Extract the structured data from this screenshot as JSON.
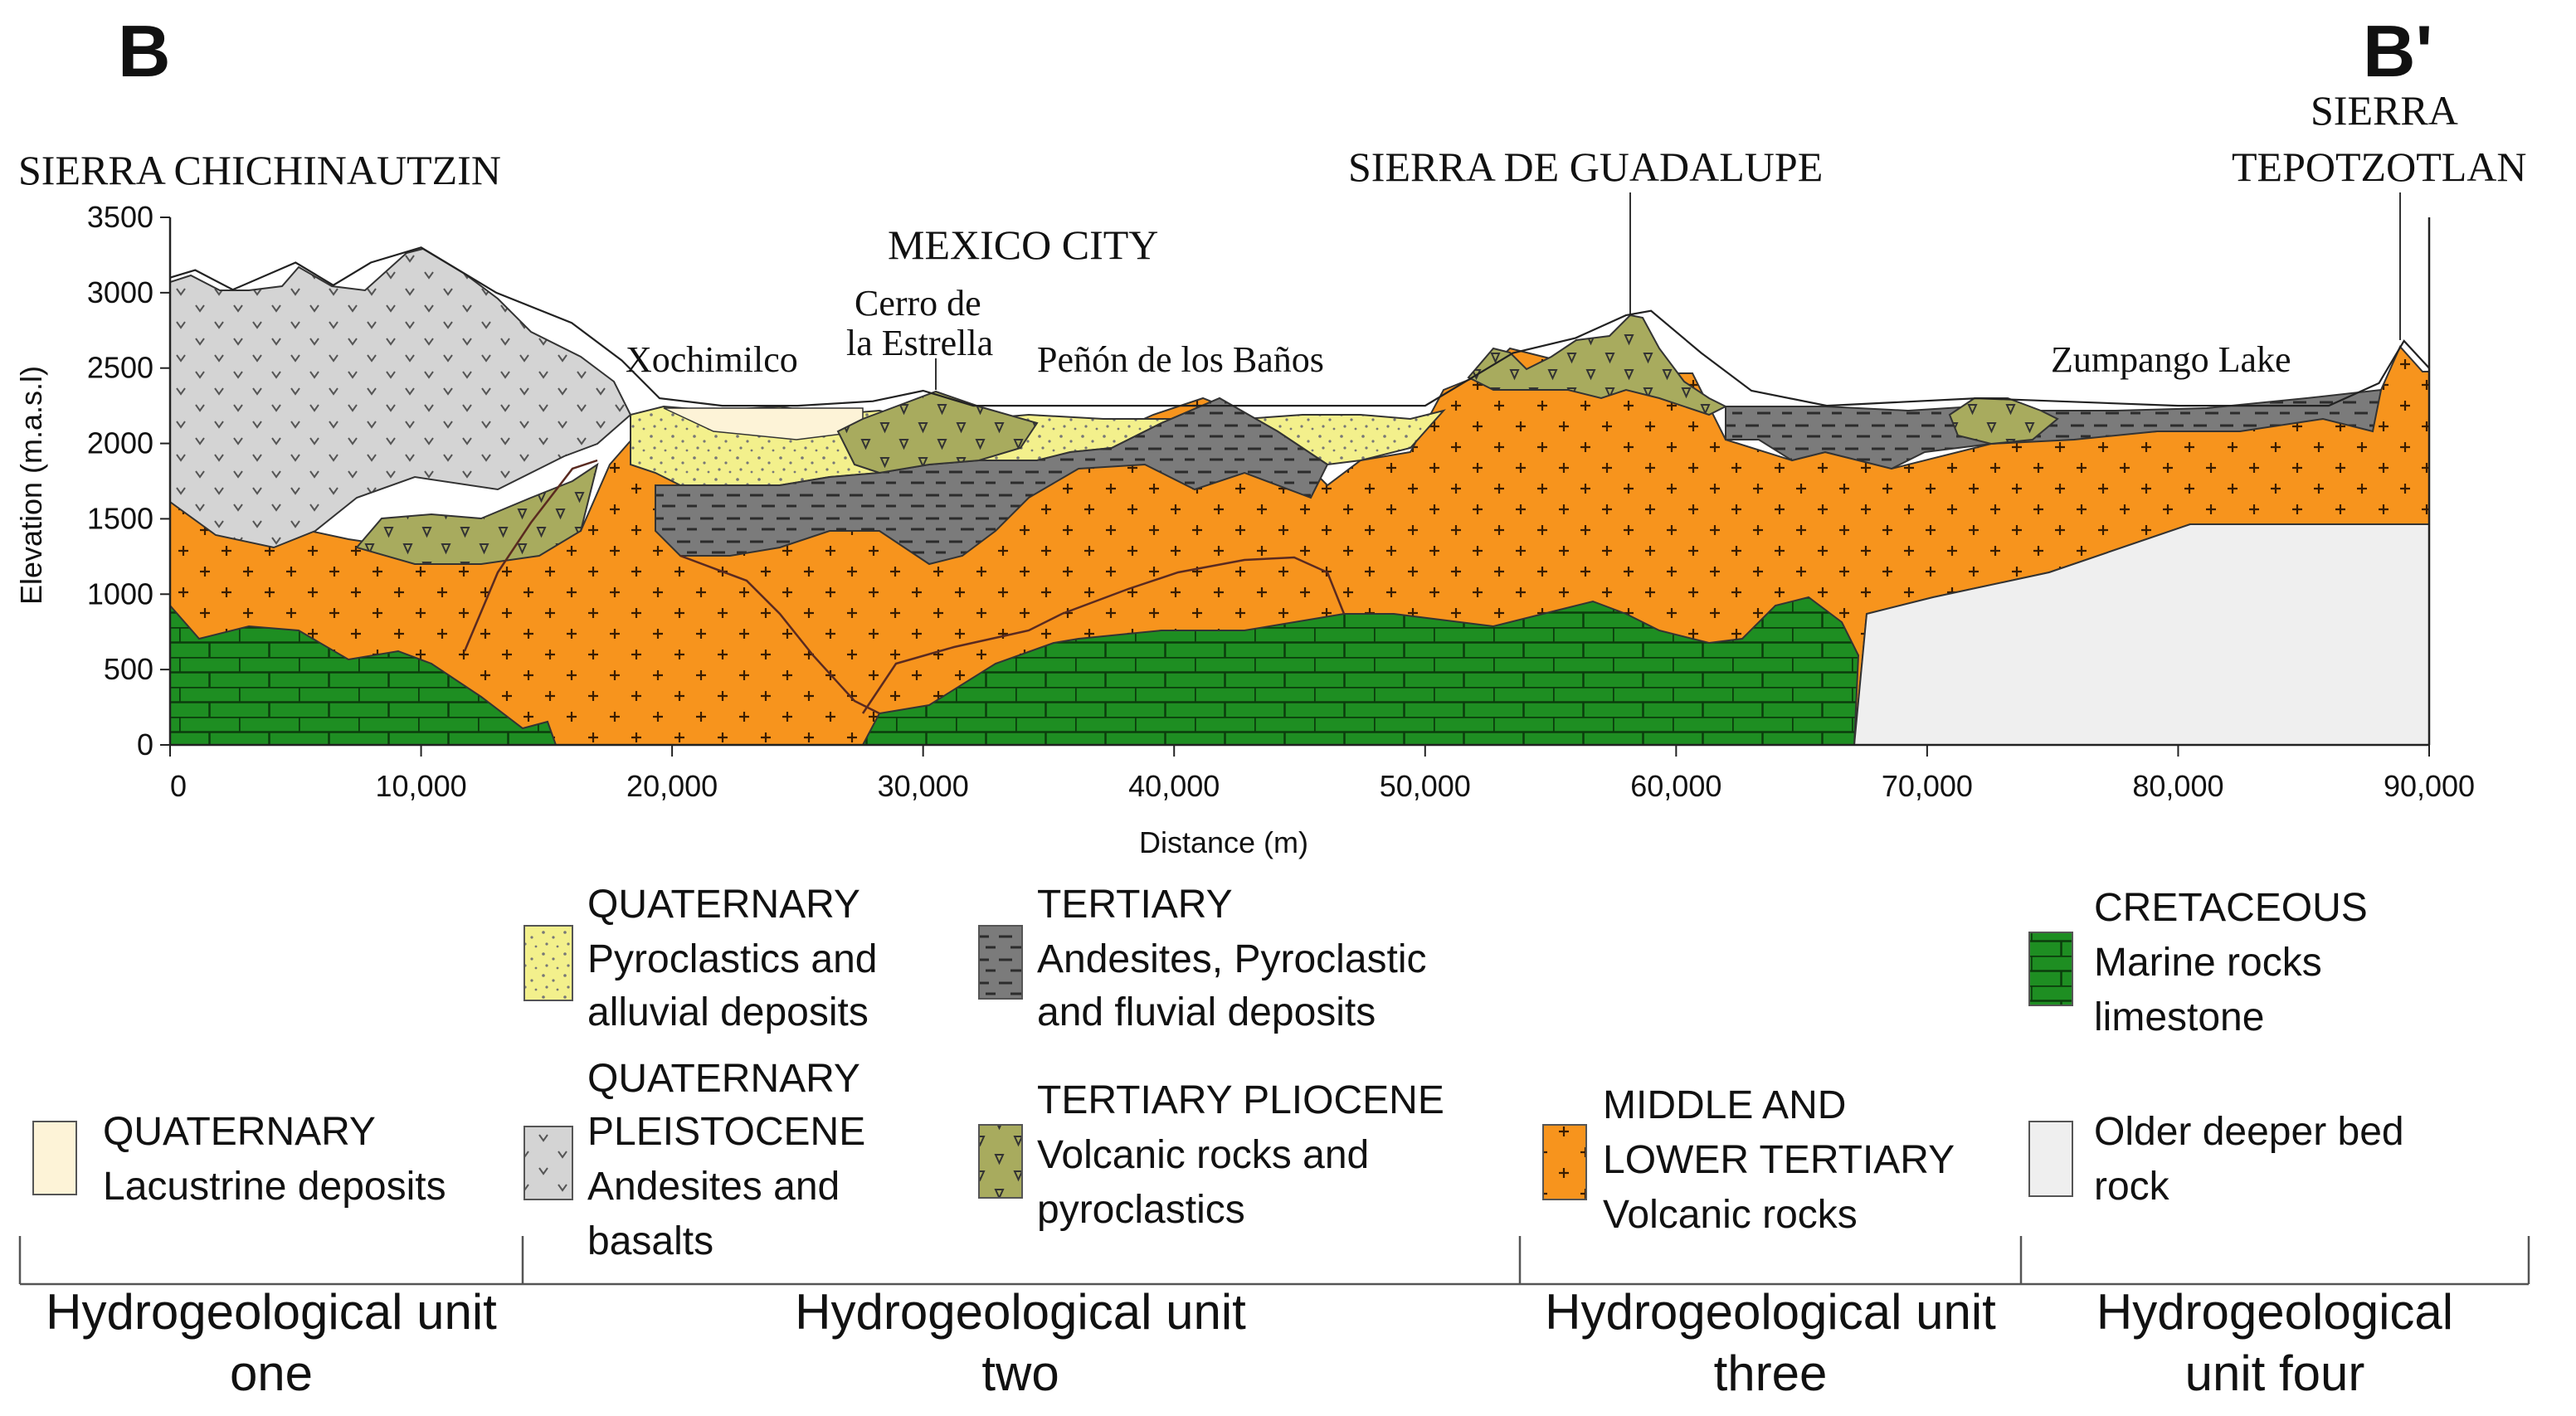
{
  "section": {
    "start_label": "B",
    "end_label": "B'"
  },
  "place_labels": {
    "sierra_chichinautzin": "SIERRA CHICHINAUTZIN",
    "mexico_city": "MEXICO CITY",
    "cerro_line1": "Cerro de",
    "cerro_line2": "la Estrella",
    "xochimilco": "Xochimilco",
    "penon": "Peñón de los Baños",
    "sierra_guadalupe": "SIERRA DE GUADALUPE",
    "sierra_tepotzotlan_line1": "SIERRA",
    "sierra_tepotzotlan_line2": "TEPOTZOTLAN",
    "zumpango": "Zumpango Lake"
  },
  "chart_data": {
    "type": "cross-section",
    "xlabel": "Distance (m)",
    "ylabel": "Elevation (m.a.s.l)",
    "xlim": [
      0,
      90000
    ],
    "ylim": [
      0,
      3500
    ],
    "xticks": [
      "0",
      "10,000",
      "20,000",
      "30,000",
      "40,000",
      "50,000",
      "60,000",
      "70,000",
      "80,000",
      "90,000"
    ],
    "yticks": [
      "0",
      "500",
      "1000",
      "1500",
      "2000",
      "2500",
      "3000",
      "3500"
    ],
    "surface_profile": [
      [
        0,
        3100
      ],
      [
        1000,
        3150
      ],
      [
        2500,
        3020
      ],
      [
        5000,
        3200
      ],
      [
        6500,
        3050
      ],
      [
        8000,
        3200
      ],
      [
        10000,
        3300
      ],
      [
        13000,
        3000
      ],
      [
        16000,
        2800
      ],
      [
        18000,
        2550
      ],
      [
        19500,
        2300
      ],
      [
        22000,
        2250
      ],
      [
        25000,
        2250
      ],
      [
        28000,
        2280
      ],
      [
        30000,
        2350
      ],
      [
        32000,
        2250
      ],
      [
        40000,
        2250
      ],
      [
        50000,
        2250
      ],
      [
        52000,
        2450
      ],
      [
        53500,
        2600
      ],
      [
        56000,
        2700
      ],
      [
        58000,
        2850
      ],
      [
        59000,
        2880
      ],
      [
        61000,
        2600
      ],
      [
        63000,
        2350
      ],
      [
        66000,
        2250
      ],
      [
        72000,
        2300
      ],
      [
        80000,
        2250
      ],
      [
        86000,
        2250
      ],
      [
        88000,
        2400
      ],
      [
        89000,
        2680
      ],
      [
        90000,
        2500
      ]
    ]
  },
  "legend": {
    "items": [
      {
        "id": "lacustrine",
        "line1": "QUATERNARY",
        "line2": "Lacustrine deposits",
        "line3": "",
        "line4": "",
        "color": "#fdf3d7"
      },
      {
        "id": "pyroclastics",
        "line1": "QUATERNARY",
        "line2": "Pyroclastics and",
        "line3": "alluvial deposits",
        "line4": "",
        "color": "#f3f08c"
      },
      {
        "id": "pleistocene",
        "line1": "QUATERNARY",
        "line2": "PLEISTOCENE",
        "line3": "Andesites and",
        "line4": "basalts",
        "color": "#d4d4d4"
      },
      {
        "id": "tertiary",
        "line1": "TERTIARY",
        "line2": "Andesites, Pyroclastic",
        "line3": "and fluvial deposits",
        "line4": "",
        "color": "#7b7b7b"
      },
      {
        "id": "pliocene",
        "line1": "TERTIARY PLIOCENE",
        "line2": "Volcanic rocks and",
        "line3": "pyroclastics",
        "line4": "",
        "color": "#a8ab5e"
      },
      {
        "id": "middle_lower",
        "line1": "MIDDLE AND",
        "line2": "LOWER TERTIARY",
        "line3": "Volcanic rocks",
        "line4": "",
        "color": "#f7941d"
      },
      {
        "id": "cretaceous",
        "line1": "CRETACEOUS",
        "line2": "Marine rocks",
        "line3": "limestone",
        "line4": "",
        "color": "#1e8e22"
      },
      {
        "id": "older",
        "line1": "Older deeper bed",
        "line2": "rock",
        "line3": "",
        "line4": "",
        "color": "#efefef"
      }
    ]
  },
  "units": [
    {
      "line1": "Hydrogeological unit",
      "line2": "one"
    },
    {
      "line1": "Hydrogeological unit",
      "line2": "two"
    },
    {
      "line1": "Hydrogeological unit",
      "line2": "three"
    },
    {
      "line1": "Hydrogeological",
      "line2": "unit four"
    }
  ]
}
